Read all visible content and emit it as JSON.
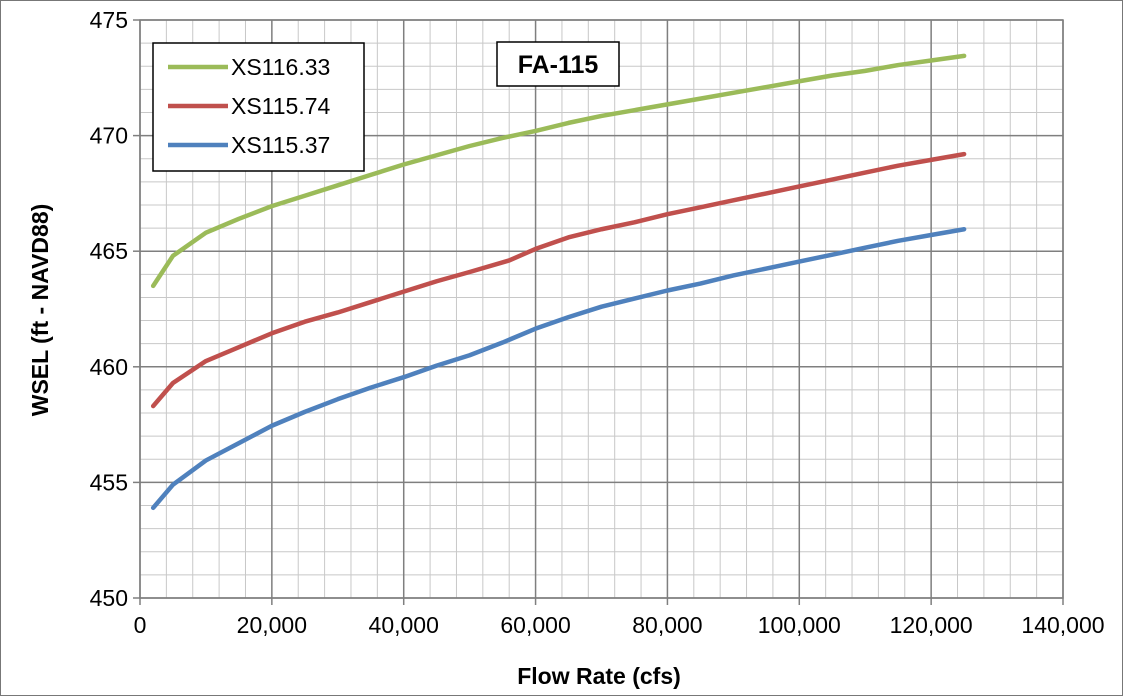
{
  "chart_data": {
    "type": "line",
    "annotation": "FA-115",
    "xlabel": "Flow Rate (cfs)",
    "ylabel": "WSEL (ft - NAVD88)",
    "xlim": [
      0,
      140000
    ],
    "ylim": [
      450,
      475
    ],
    "x_ticks": [
      0,
      20000,
      40000,
      60000,
      80000,
      100000,
      120000,
      140000
    ],
    "x_tick_labels": [
      "0",
      "20,000",
      "40,000",
      "60,000",
      "80,000",
      "100,000",
      "120,000",
      "140,000"
    ],
    "y_ticks": [
      450,
      455,
      460,
      465,
      470,
      475
    ],
    "y_tick_labels": [
      "450",
      "455",
      "460",
      "465",
      "470",
      "475"
    ],
    "x_minor_step": 4000,
    "y_minor_step": 1,
    "grid": true,
    "legend_position": "top-left",
    "series": [
      {
        "name": "XS116.33",
        "color": "#9bbb59",
        "points": [
          [
            2000,
            463.5
          ],
          [
            5000,
            464.8
          ],
          [
            10000,
            465.8
          ],
          [
            15000,
            466.4
          ],
          [
            20000,
            466.95
          ],
          [
            25000,
            467.4
          ],
          [
            30000,
            467.85
          ],
          [
            35000,
            468.3
          ],
          [
            40000,
            468.75
          ],
          [
            45000,
            469.15
          ],
          [
            50000,
            469.55
          ],
          [
            55000,
            469.9
          ],
          [
            60000,
            470.2
          ],
          [
            65000,
            470.55
          ],
          [
            70000,
            470.85
          ],
          [
            75000,
            471.1
          ],
          [
            80000,
            471.35
          ],
          [
            85000,
            471.6
          ],
          [
            90000,
            471.85
          ],
          [
            95000,
            472.1
          ],
          [
            100000,
            472.35
          ],
          [
            105000,
            472.6
          ],
          [
            110000,
            472.8
          ],
          [
            115000,
            473.05
          ],
          [
            120000,
            473.25
          ],
          [
            125000,
            473.45
          ]
        ]
      },
      {
        "name": "XS115.74",
        "color": "#c0504d",
        "points": [
          [
            2000,
            458.3
          ],
          [
            5000,
            459.3
          ],
          [
            10000,
            460.25
          ],
          [
            15000,
            460.85
          ],
          [
            20000,
            461.45
          ],
          [
            25000,
            461.95
          ],
          [
            30000,
            462.35
          ],
          [
            35000,
            462.8
          ],
          [
            40000,
            463.25
          ],
          [
            45000,
            463.7
          ],
          [
            50000,
            464.1
          ],
          [
            56000,
            464.6
          ],
          [
            60000,
            465.1
          ],
          [
            65000,
            465.6
          ],
          [
            70000,
            465.95
          ],
          [
            75000,
            466.25
          ],
          [
            80000,
            466.6
          ],
          [
            85000,
            466.9
          ],
          [
            90000,
            467.2
          ],
          [
            95000,
            467.5
          ],
          [
            100000,
            467.8
          ],
          [
            105000,
            468.1
          ],
          [
            110000,
            468.4
          ],
          [
            115000,
            468.7
          ],
          [
            120000,
            468.95
          ],
          [
            125000,
            469.2
          ]
        ]
      },
      {
        "name": "XS115.37",
        "color": "#4f81bd",
        "points": [
          [
            2000,
            453.9
          ],
          [
            5000,
            454.9
          ],
          [
            10000,
            455.95
          ],
          [
            15000,
            456.7
          ],
          [
            20000,
            457.45
          ],
          [
            25000,
            458.05
          ],
          [
            30000,
            458.6
          ],
          [
            35000,
            459.1
          ],
          [
            40000,
            459.55
          ],
          [
            45000,
            460.05
          ],
          [
            50000,
            460.5
          ],
          [
            55000,
            461.05
          ],
          [
            60000,
            461.65
          ],
          [
            65000,
            462.15
          ],
          [
            70000,
            462.6
          ],
          [
            75000,
            462.95
          ],
          [
            80000,
            463.3
          ],
          [
            85000,
            463.6
          ],
          [
            90000,
            463.95
          ],
          [
            95000,
            464.25
          ],
          [
            100000,
            464.55
          ],
          [
            105000,
            464.85
          ],
          [
            110000,
            465.15
          ],
          [
            115000,
            465.45
          ],
          [
            120000,
            465.7
          ],
          [
            125000,
            465.95
          ]
        ]
      }
    ]
  }
}
